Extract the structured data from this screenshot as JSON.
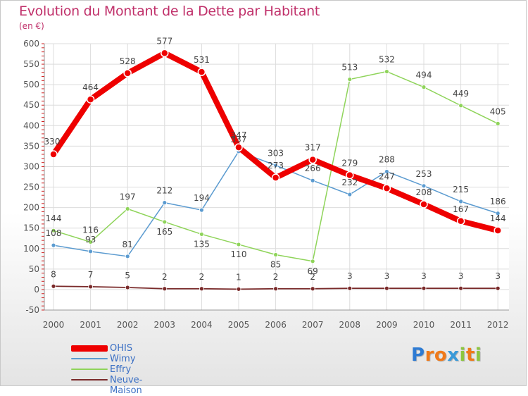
{
  "header": {
    "title": "Evolution du Montant de la Dette par Habitant",
    "subtitle": "(en €)"
  },
  "brand": {
    "letters": [
      "P",
      "r",
      "o",
      "x",
      "i",
      "t",
      "i"
    ],
    "colors": [
      "#2e7bd3",
      "#f07a1a",
      "#f07a1a",
      "#3a9ad9",
      "#8cc63f",
      "#f07a1a",
      "#8cc63f"
    ]
  },
  "chart_data": {
    "type": "line",
    "title": "Evolution du Montant de la Dette par Habitant",
    "subtitle": "(en €)",
    "xlabel": "",
    "ylabel": "",
    "x": [
      "2000",
      "2001",
      "2002",
      "2003",
      "2004",
      "2005",
      "2006",
      "2007",
      "2008",
      "2009",
      "2010",
      "2011",
      "2012"
    ],
    "ylim": [
      -50,
      600
    ],
    "yticks": [
      -50,
      0,
      50,
      100,
      150,
      200,
      250,
      300,
      350,
      400,
      450,
      500,
      550,
      600
    ],
    "grid": true,
    "legend_position": "bottom-left",
    "series": [
      {
        "name": "OHIS",
        "color": "#ee0000",
        "values": [
          330,
          464,
          528,
          577,
          531,
          347,
          273,
          317,
          279,
          247,
          208,
          167,
          144
        ],
        "labels": [
          "330",
          "464",
          "528",
          "577",
          "531",
          "347",
          "273",
          "317",
          "279",
          "247",
          "208",
          "167",
          "144"
        ]
      },
      {
        "name": "Wimy",
        "color": "#5b9bd0",
        "values": [
          108,
          93,
          81,
          212,
          194,
          337,
          303,
          266,
          232,
          288,
          253,
          215,
          186
        ],
        "labels": [
          "108",
          "93",
          "81",
          "212",
          "194",
          "337",
          "303",
          "266",
          "232",
          "288",
          "253",
          "215",
          "186"
        ]
      },
      {
        "name": "Effry",
        "color": "#8fd45a",
        "values": [
          144,
          116,
          197,
          165,
          135,
          110,
          85,
          69,
          513,
          532,
          494,
          449,
          405
        ],
        "labels": [
          "144",
          "116",
          "197",
          "165",
          "135",
          "110",
          "85",
          "69",
          "513",
          "532",
          "494",
          "449",
          "405"
        ]
      },
      {
        "name": "Neuve-Maison",
        "color": "#7a2a2a",
        "values": [
          8,
          7,
          5,
          2,
          2,
          1,
          2,
          2,
          3,
          3,
          3,
          3,
          3
        ],
        "labels": [
          "8",
          "7",
          "5",
          "2",
          "2",
          "1",
          "2",
          "2",
          "3",
          "3",
          "3",
          "3",
          "3"
        ]
      }
    ]
  }
}
